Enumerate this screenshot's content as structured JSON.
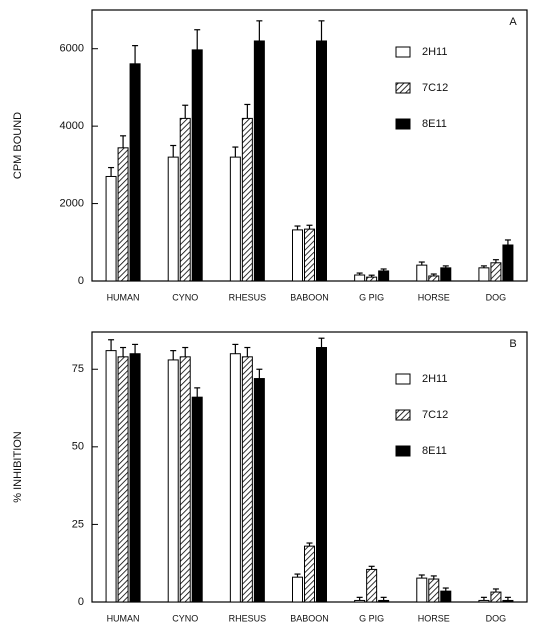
{
  "chart_data": [
    {
      "type": "bar",
      "annotation": "A",
      "ylabel": "CPM  BOUND",
      "categories": [
        "HUMAN",
        "CYNO",
        "RHESUS",
        "BABOON",
        "G PIG",
        "HORSE",
        "DOG"
      ],
      "ylim": [
        0,
        7000
      ],
      "yticks": [
        0,
        2000,
        4000,
        6000
      ],
      "legend": "upper right",
      "series": [
        {
          "name": "2H11",
          "color": "#ffffff",
          "pattern": "none",
          "values": [
            2700,
            3200,
            3200,
            1320,
            155,
            410,
            340
          ],
          "errors": [
            230,
            300,
            260,
            100,
            50,
            80,
            50
          ]
        },
        {
          "name": "7C12",
          "color": "#ffffff",
          "pattern": "hatch",
          "values": [
            3440,
            4200,
            4200,
            1340,
            100,
            130,
            470
          ],
          "errors": [
            310,
            340,
            360,
            100,
            50,
            50,
            80
          ]
        },
        {
          "name": "8E11",
          "color": "#000000",
          "pattern": "none",
          "values": [
            5610,
            5970,
            6200,
            6200,
            260,
            340,
            930
          ],
          "errors": [
            470,
            520,
            520,
            520,
            50,
            50,
            130
          ]
        }
      ]
    },
    {
      "type": "bar",
      "annotation": "B",
      "ylabel": "% INHIBITION",
      "categories": [
        "HUMAN",
        "CYNO",
        "RHESUS",
        "BABOON",
        "G PIG",
        "HORSE",
        "DOG"
      ],
      "ylim": [
        0,
        87
      ],
      "yticks": [
        0,
        25,
        50,
        75
      ],
      "legend": "upper right",
      "series": [
        {
          "name": "2H11",
          "color": "#ffffff",
          "pattern": "none",
          "values": [
            81,
            78,
            80,
            8,
            0.5,
            7.7,
            0.5
          ],
          "errors": [
            3.5,
            3,
            3,
            1,
            1,
            1,
            1
          ]
        },
        {
          "name": "7C12",
          "color": "#ffffff",
          "pattern": "hatch",
          "values": [
            79,
            79,
            79,
            18,
            10.5,
            7.4,
            3.2
          ],
          "errors": [
            3,
            3,
            3,
            1,
            1,
            1,
            1
          ]
        },
        {
          "name": "8E11",
          "color": "#000000",
          "pattern": "none",
          "values": [
            80,
            66,
            72,
            82,
            0.5,
            3.5,
            0.5
          ],
          "errors": [
            3,
            3,
            3,
            3,
            1,
            1,
            1
          ]
        }
      ]
    }
  ]
}
